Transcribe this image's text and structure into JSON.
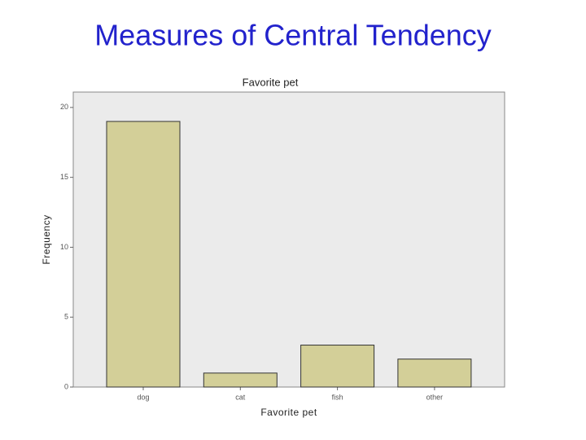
{
  "slide_title": "Measures of Central Tendency",
  "chart_data": {
    "type": "bar",
    "title": "Favorite pet",
    "x_label": "Favorite pet",
    "y_label": "Frequency",
    "categories": [
      "dog",
      "cat",
      "fish",
      "other"
    ],
    "values": [
      19,
      1,
      3,
      2
    ],
    "color": "#d3cf98",
    "ylim": [
      0,
      21.1
    ],
    "yticks": [
      0,
      5,
      10,
      15,
      20
    ],
    "grid": false
  }
}
